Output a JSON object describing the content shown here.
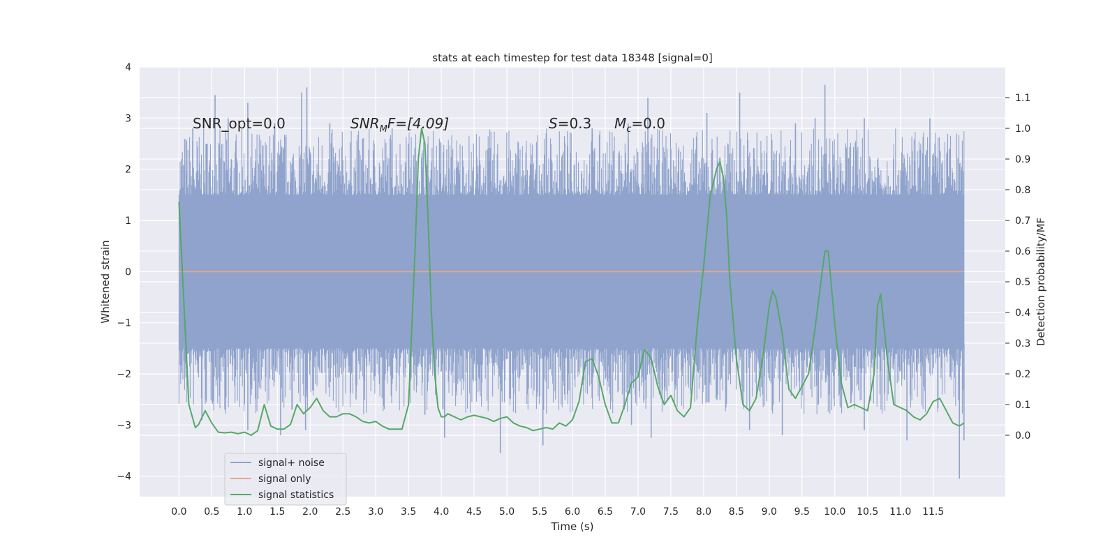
{
  "chart_data": {
    "type": "line",
    "title": "stats at each timestep for test data 18348 [signal=0]",
    "xlabel": "Time (s)",
    "ylabel": "Whitened strain",
    "y2label": "Detection probability/MF",
    "xlim": [
      -0.6,
      12.6
    ],
    "ylim": [
      -4.4,
      4.0
    ],
    "y2lim": [
      -0.2,
      1.2
    ],
    "xticks": [
      0.0,
      0.5,
      1.0,
      1.5,
      2.0,
      2.5,
      3.0,
      3.5,
      4.0,
      4.5,
      5.0,
      5.5,
      6.0,
      6.5,
      7.0,
      7.5,
      8.0,
      8.5,
      9.0,
      9.5,
      10.0,
      10.5,
      11.0,
      11.5
    ],
    "xtick_labels": [
      "0.0",
      "0.5",
      "1.0",
      "1.5",
      "2.0",
      "2.5",
      "3.0",
      "3.5",
      "4.0",
      "4.5",
      "5.0",
      "5.5",
      "6.0",
      "6.5",
      "7.0",
      "7.5",
      "8.0",
      "8.5",
      "9.0",
      "9.5",
      "10.0",
      "10.5",
      "11.0",
      "11.5"
    ],
    "yticks": [
      -4,
      -3,
      -2,
      -1,
      0,
      1,
      2,
      3,
      4
    ],
    "ytick_labels": [
      "−4",
      "−3",
      "−2",
      "−1",
      "0",
      "1",
      "2",
      "3",
      "4"
    ],
    "y2ticks": [
      0.0,
      0.1,
      0.2,
      0.3,
      0.4,
      0.5,
      0.6,
      0.7,
      0.8,
      0.9,
      1.0,
      1.1
    ],
    "y2tick_labels": [
      "0.0",
      "0.1",
      "0.2",
      "0.3",
      "0.4",
      "0.5",
      "0.6",
      "0.7",
      "0.8",
      "0.9",
      "1.0",
      "1.1"
    ],
    "grid": true,
    "legend_position": "bottom-left",
    "annotations": {
      "snr_opt": "SNR_opt=0.0",
      "snr_mf_base": "SNR",
      "snr_mf_sub": "M",
      "snr_mf_rest": "F=[4.09]",
      "s_italic": "S",
      "s_rest": "=0.3",
      "mc_base": "M",
      "mc_sub": "c",
      "mc_rest": "=0.0"
    },
    "series": [
      {
        "name": "signal+ noise",
        "color": "#8fa3cc",
        "axis": "left",
        "description_range": [
          -1.5,
          1.5
        ],
        "spikes": [
          [
            0.21,
            2.8
          ],
          [
            0.43,
            2.5
          ],
          [
            0.55,
            3.45
          ],
          [
            0.75,
            3.0
          ],
          [
            1.05,
            3.3
          ],
          [
            1.46,
            2.9
          ],
          [
            1.6,
            2.4
          ],
          [
            1.87,
            3.5
          ],
          [
            1.95,
            3.6
          ],
          [
            2.3,
            2.9
          ],
          [
            2.8,
            2.6
          ],
          [
            3.25,
            2.8
          ],
          [
            3.5,
            2.5
          ],
          [
            5.6,
            2.7
          ],
          [
            6.3,
            2.8
          ],
          [
            6.85,
            2.9
          ],
          [
            7.15,
            3.4
          ],
          [
            7.5,
            2.4
          ],
          [
            8.05,
            3.1
          ],
          [
            8.55,
            3.5
          ],
          [
            9.4,
            2.9
          ],
          [
            9.7,
            3.0
          ],
          [
            9.85,
            3.65
          ],
          [
            10.45,
            3.0
          ],
          [
            11.45,
            3.0
          ],
          [
            11.75,
            2.4
          ],
          [
            0.35,
            -2.9
          ],
          [
            0.7,
            -2.7
          ],
          [
            1.05,
            -3.1
          ],
          [
            1.55,
            -3.2
          ],
          [
            1.93,
            -3.1
          ],
          [
            2.7,
            -2.5
          ],
          [
            3.75,
            -2.8
          ],
          [
            4.05,
            -3.25
          ],
          [
            4.9,
            -3.55
          ],
          [
            5.55,
            -3.4
          ],
          [
            6.9,
            -3.0
          ],
          [
            7.2,
            -3.25
          ],
          [
            8.2,
            -2.5
          ],
          [
            8.7,
            -3.1
          ],
          [
            9.2,
            -3.2
          ],
          [
            9.75,
            -2.6
          ],
          [
            10.45,
            -3.1
          ],
          [
            11.1,
            -3.3
          ],
          [
            11.9,
            -4.05
          ],
          [
            11.97,
            -3.3
          ]
        ]
      },
      {
        "name": "signal only",
        "color": "#e6a68a",
        "axis": "left",
        "x": [
          0.0,
          11.97
        ],
        "y": [
          0.0,
          0.0
        ]
      },
      {
        "name": "signal statistics",
        "color": "#55a868",
        "axis": "right",
        "x": [
          0.0,
          0.15,
          0.25,
          0.3,
          0.4,
          0.5,
          0.6,
          0.7,
          0.8,
          0.9,
          1.0,
          1.1,
          1.2,
          1.3,
          1.4,
          1.5,
          1.6,
          1.7,
          1.8,
          1.9,
          2.0,
          2.1,
          2.2,
          2.3,
          2.4,
          2.5,
          2.6,
          2.7,
          2.8,
          2.9,
          3.0,
          3.1,
          3.2,
          3.3,
          3.4,
          3.5,
          3.6,
          3.65,
          3.7,
          3.75,
          3.8,
          3.85,
          3.9,
          3.95,
          4.0,
          4.05,
          4.1,
          4.2,
          4.3,
          4.4,
          4.5,
          4.6,
          4.7,
          4.8,
          4.9,
          5.0,
          5.1,
          5.2,
          5.3,
          5.4,
          5.5,
          5.6,
          5.7,
          5.8,
          5.9,
          6.0,
          6.1,
          6.2,
          6.3,
          6.35,
          6.4,
          6.5,
          6.6,
          6.7,
          6.8,
          6.9,
          7.0,
          7.1,
          7.2,
          7.3,
          7.4,
          7.5,
          7.6,
          7.7,
          7.8,
          7.9,
          8.0,
          8.1,
          8.2,
          8.25,
          8.3,
          8.35,
          8.4,
          8.5,
          8.6,
          8.7,
          8.8,
          8.9,
          9.0,
          9.05,
          9.1,
          9.2,
          9.3,
          9.4,
          9.5,
          9.6,
          9.7,
          9.8,
          9.85,
          9.9,
          10.0,
          10.1,
          10.2,
          10.3,
          10.4,
          10.5,
          10.6,
          10.65,
          10.7,
          10.8,
          10.9,
          11.0,
          11.1,
          11.2,
          11.3,
          11.4,
          11.5,
          11.6,
          11.7,
          11.8,
          11.9,
          11.97
        ],
        "y": [
          0.76,
          0.1,
          0.025,
          0.035,
          0.08,
          0.04,
          0.01,
          0.008,
          0.01,
          0.005,
          0.01,
          0.0,
          0.015,
          0.1,
          0.03,
          0.02,
          0.02,
          0.035,
          0.1,
          0.07,
          0.09,
          0.12,
          0.08,
          0.06,
          0.06,
          0.07,
          0.07,
          0.06,
          0.045,
          0.04,
          0.045,
          0.03,
          0.02,
          0.02,
          0.02,
          0.1,
          0.6,
          0.9,
          1.0,
          0.95,
          0.7,
          0.4,
          0.2,
          0.09,
          0.06,
          0.06,
          0.07,
          0.06,
          0.05,
          0.06,
          0.065,
          0.06,
          0.055,
          0.045,
          0.055,
          0.06,
          0.04,
          0.03,
          0.025,
          0.015,
          0.02,
          0.025,
          0.02,
          0.04,
          0.03,
          0.05,
          0.11,
          0.24,
          0.25,
          0.22,
          0.19,
          0.1,
          0.04,
          0.04,
          0.1,
          0.17,
          0.19,
          0.28,
          0.25,
          0.16,
          0.1,
          0.13,
          0.08,
          0.06,
          0.09,
          0.35,
          0.55,
          0.78,
          0.87,
          0.89,
          0.84,
          0.72,
          0.5,
          0.25,
          0.1,
          0.08,
          0.12,
          0.25,
          0.42,
          0.47,
          0.45,
          0.33,
          0.15,
          0.12,
          0.16,
          0.2,
          0.35,
          0.52,
          0.6,
          0.6,
          0.36,
          0.17,
          0.09,
          0.1,
          0.09,
          0.08,
          0.2,
          0.42,
          0.46,
          0.25,
          0.1,
          0.09,
          0.08,
          0.06,
          0.05,
          0.07,
          0.11,
          0.12,
          0.08,
          0.04,
          0.03,
          0.04
        ]
      }
    ]
  }
}
